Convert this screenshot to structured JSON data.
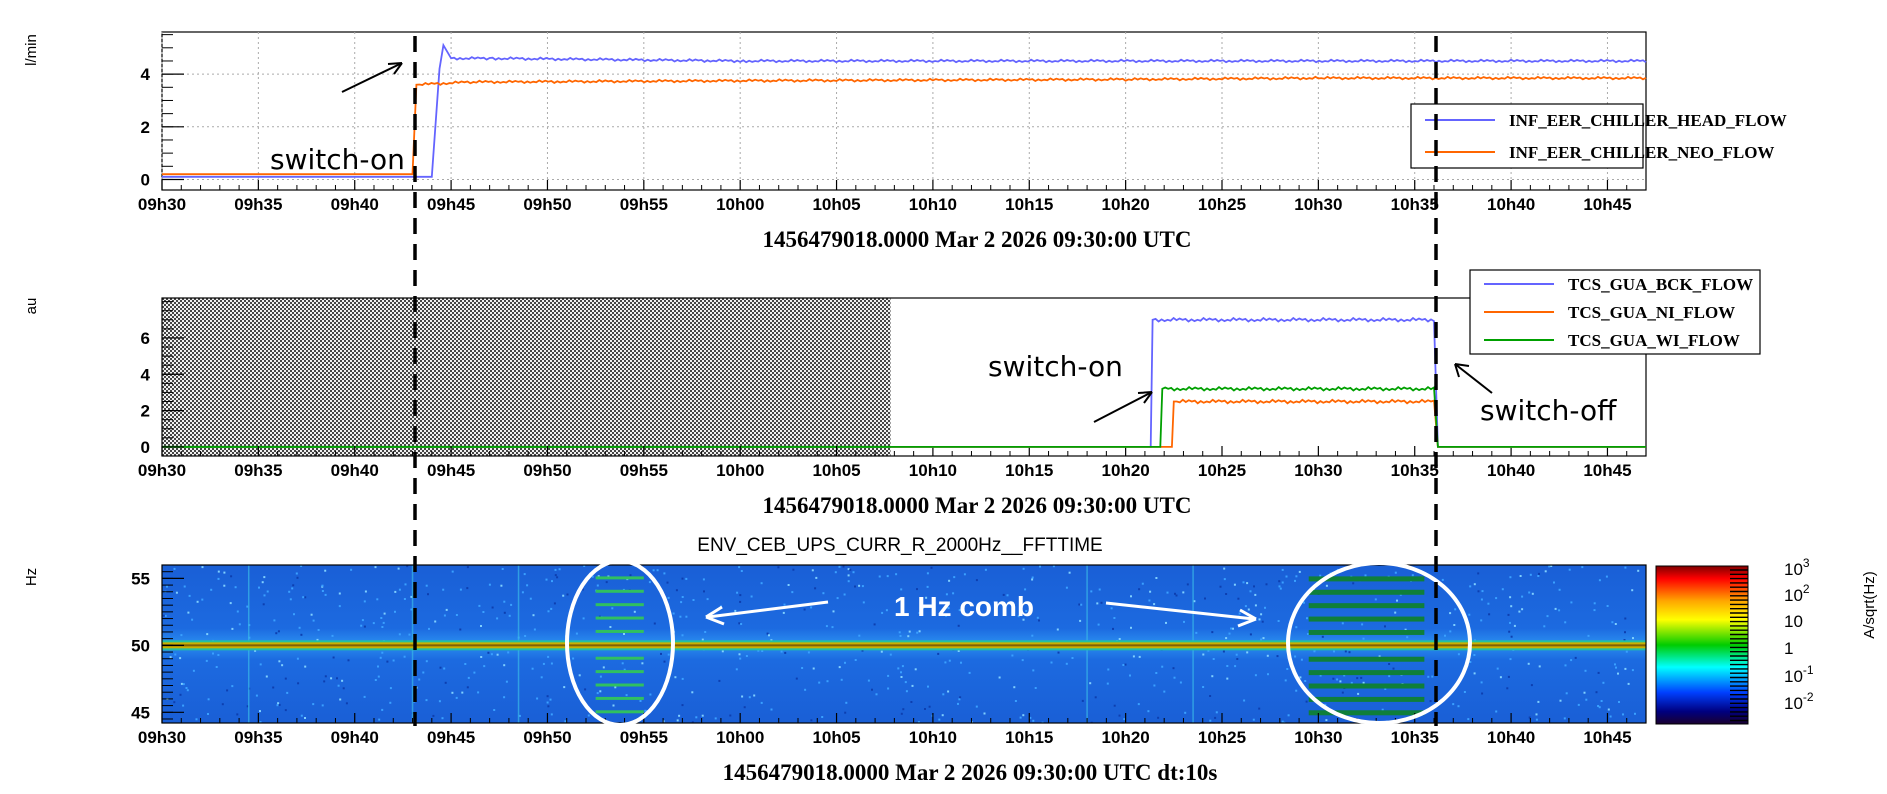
{
  "chart_data": [
    {
      "type": "line",
      "id": "p1",
      "ylabel": "l/min",
      "xlabel": "1456479018.0000 Mar 2 2026 09:30:00 UTC",
      "x_ticks": [
        "09h30",
        "09h35",
        "09h40",
        "09h45",
        "09h50",
        "09h55",
        "10h00",
        "10h05",
        "10h10",
        "10h15",
        "10h20",
        "10h25",
        "10h30",
        "10h35",
        "10h40",
        "10h45"
      ],
      "xlim_min": [
        0,
        77
      ],
      "y_ticks": [
        "0",
        "2",
        "4"
      ],
      "ylim": [
        -0.4,
        5.6
      ],
      "grid": true,
      "legend": "top-right",
      "series": [
        {
          "name": "INF_EER_CHILLER_HEAD_FLOW",
          "color": "#6464ff",
          "points": [
            [
              0,
              0.1
            ],
            [
              14,
              0.1
            ],
            [
              14.4,
              4.2
            ],
            [
              14.6,
              5.1
            ],
            [
              15,
              4.6
            ],
            [
              17,
              4.6
            ],
            [
              30,
              4.5
            ],
            [
              77,
              4.5
            ]
          ]
        },
        {
          "name": "INF_EER_CHILLER_NEO_FLOW",
          "color": "#ff6600",
          "points": [
            [
              0,
              0.2
            ],
            [
              13,
              0.2
            ],
            [
              13.2,
              3.6
            ],
            [
              16,
              3.7
            ],
            [
              30,
              3.75
            ],
            [
              50,
              3.8
            ],
            [
              60,
              3.85
            ],
            [
              77,
              3.85
            ]
          ]
        }
      ]
    },
    {
      "type": "line",
      "id": "p2",
      "ylabel": "au",
      "xlabel": "1456479018.0000 Mar 2 2026 09:30:00 UTC",
      "x_ticks": [
        "09h30",
        "09h35",
        "09h40",
        "09h45",
        "09h50",
        "09h55",
        "10h00",
        "10h05",
        "10h10",
        "10h15",
        "10h20",
        "10h25",
        "10h30",
        "10h35",
        "10h40",
        "10h45"
      ],
      "xlim_min": [
        0,
        77
      ],
      "y_ticks": [
        "0",
        "2",
        "4",
        "6"
      ],
      "ylim": [
        -0.5,
        8.2
      ],
      "no_data_until_min": 37.8,
      "legend": "top-right",
      "series": [
        {
          "name": "TCS_GUA_BCK_FLOW",
          "color": "#6464ff",
          "points": [
            [
              37.8,
              0
            ],
            [
              51.3,
              0
            ],
            [
              51.4,
              7.0
            ],
            [
              66,
              7.0
            ],
            [
              66.2,
              0
            ],
            [
              77,
              0
            ]
          ]
        },
        {
          "name": "TCS_GUA_NI_FLOW",
          "color": "#ff6600",
          "points": [
            [
              37.8,
              0
            ],
            [
              52.4,
              0
            ],
            [
              52.5,
              2.5
            ],
            [
              66,
              2.5
            ],
            [
              66.2,
              0
            ],
            [
              77,
              0
            ]
          ]
        },
        {
          "name": "TCS_GUA_WI_FLOW",
          "color": "#00a000",
          "points": [
            [
              37.8,
              0
            ],
            [
              51.8,
              0
            ],
            [
              51.9,
              3.2
            ],
            [
              66,
              3.2
            ],
            [
              66.2,
              0
            ],
            [
              77,
              0
            ]
          ]
        }
      ]
    },
    {
      "type": "heatmap",
      "id": "p3",
      "title": "ENV_CEB_UPS_CURR_R_2000Hz__FFTTIME",
      "ylabel": "Hz",
      "xlabel": "1456479018.0000 Mar 2 2026 09:30:00 UTC dt:10s",
      "zlabel": "A/sqrt(Hz)",
      "x_ticks": [
        "09h30",
        "09h35",
        "09h40",
        "09h45",
        "09h50",
        "09h55",
        "10h00",
        "10h05",
        "10h10",
        "10h15",
        "10h20",
        "10h25",
        "10h30",
        "10h35",
        "10h40",
        "10h45"
      ],
      "xlim_min": [
        0,
        77
      ],
      "y_ticks": [
        "45",
        "50",
        "55"
      ],
      "ylim": [
        44.2,
        56.0
      ],
      "line_hz": 50,
      "comb_intervals_min": [
        [
          22.5,
          25.0
        ],
        [
          59.5,
          65.5
        ]
      ],
      "colorbar_ticks": [
        {
          "base": "10",
          "exp": "3"
        },
        {
          "base": "10",
          "exp": "2"
        },
        {
          "base": "10",
          "exp": ""
        },
        {
          "base": "1",
          "exp": ""
        },
        {
          "base": "10",
          "exp": "-1"
        },
        {
          "base": "10",
          "exp": "-2"
        }
      ]
    }
  ],
  "annotations": {
    "p1_switch_on": "switch-on",
    "p2_switch_on": "switch-on",
    "p2_switch_off": "switch-off",
    "comb_label": "1 Hz comb"
  }
}
